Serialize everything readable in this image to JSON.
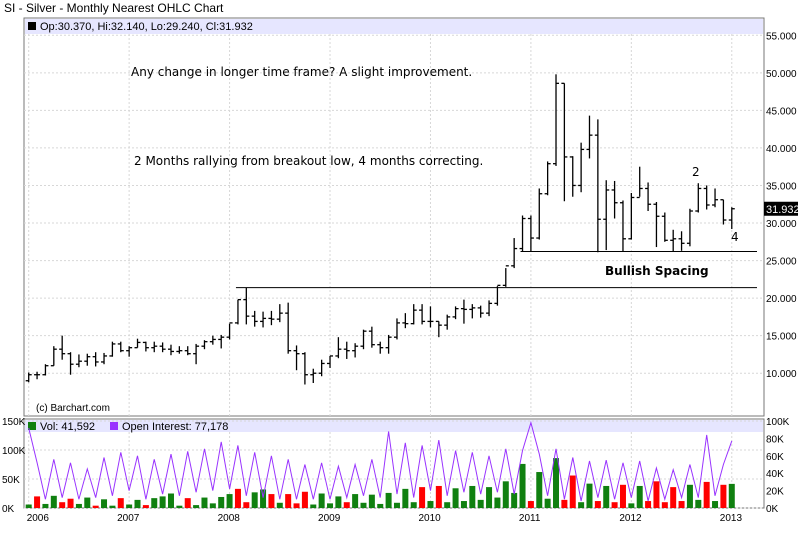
{
  "header": {
    "title": "SI - Silver - Monthly Nearest OHLC Chart",
    "ohlc_readout": "Op:30.370, Hi:32.140, Lo:29.240, Cl:31.932",
    "price_badge": "31.932",
    "watermark": "(c) Barchart.com"
  },
  "annotations": {
    "note_1": "Any change in longer time frame?  A slight improvement.",
    "note_2": "2 Months rallying from breakout low, 4 months correcting.",
    "label_bullish": "Bullish Spacing",
    "wave_2": "2",
    "wave_4": "4"
  },
  "volume_legend": {
    "vol": "Vol: 41,592",
    "oi": "Open Interest: 77,178"
  },
  "colors": {
    "background": "#ffffff",
    "band": "#e6e6ff",
    "grid": "#d7d7d7",
    "bar": "#000000",
    "vol_up": "#108010",
    "vol_down": "#ff0000",
    "oi_line": "#9933ff"
  },
  "chart_data": {
    "type": "ohlc",
    "x_ticks": [
      "2006",
      "2007",
      "2008",
      "2009",
      "2010",
      "2011",
      "2012",
      "2013"
    ],
    "price_ticks": [
      "10.000",
      "15.000",
      "20.000",
      "25.000",
      "30.000",
      "35.000",
      "40.000",
      "45.000",
      "50.000",
      "55.000"
    ],
    "price_range": [
      7.5,
      56.5
    ],
    "volume_left_ticks": [
      "0K",
      "50K",
      "100K",
      "150K"
    ],
    "volume_right_ticks": [
      "0K",
      "20K",
      "40K",
      "60K",
      "80K",
      "100K"
    ],
    "volume_range": [
      0,
      150000
    ],
    "oi_range": [
      0,
      100000
    ],
    "horizontal_lines": [
      {
        "y": 26.2,
        "from": "2010-12",
        "to": "2013-01"
      },
      {
        "y": 21.4,
        "from": "2008-02",
        "to": "2013-01"
      }
    ],
    "series": [
      {
        "name": "Silver monthly OHLC",
        "values": [
          [
            9.0,
            10.1,
            8.8,
            9.8
          ],
          [
            9.8,
            10.2,
            9.2,
            9.8
          ],
          [
            9.8,
            11.2,
            9.7,
            11.0
          ],
          [
            11.0,
            13.6,
            11.0,
            13.2
          ],
          [
            13.2,
            15.0,
            11.8,
            12.6
          ],
          [
            12.6,
            12.8,
            9.8,
            11.2
          ],
          [
            11.2,
            12.5,
            10.8,
            11.6
          ],
          [
            11.6,
            12.6,
            11.0,
            12.2
          ],
          [
            12.2,
            12.8,
            10.9,
            11.5
          ],
          [
            11.5,
            12.7,
            11.2,
            12.3
          ],
          [
            12.3,
            14.2,
            12.2,
            13.9
          ],
          [
            13.9,
            14.2,
            12.8,
            13.0
          ],
          [
            13.0,
            13.6,
            12.2,
            13.4
          ],
          [
            13.4,
            14.6,
            13.4,
            14.1
          ],
          [
            14.1,
            14.2,
            12.9,
            13.4
          ],
          [
            13.4,
            14.2,
            12.8,
            13.6
          ],
          [
            13.6,
            14.1,
            12.8,
            13.2
          ],
          [
            13.2,
            13.8,
            12.4,
            12.9
          ],
          [
            12.9,
            13.6,
            12.6,
            13.0
          ],
          [
            13.0,
            13.6,
            12.4,
            12.6
          ],
          [
            12.6,
            13.9,
            11.2,
            13.6
          ],
          [
            13.6,
            14.4,
            13.2,
            14.2
          ],
          [
            14.2,
            15.0,
            13.8,
            14.5
          ],
          [
            14.5,
            15.1,
            13.3,
            14.8
          ],
          [
            14.8,
            16.6,
            14.5,
            16.7
          ],
          [
            16.7,
            19.8,
            16.5,
            19.8
          ],
          [
            19.8,
            21.4,
            16.5,
            17.6
          ],
          [
            17.6,
            18.3,
            16.2,
            16.9
          ],
          [
            16.9,
            18.2,
            16.1,
            17.3
          ],
          [
            17.3,
            18.3,
            16.4,
            17.2
          ],
          [
            17.2,
            19.2,
            16.8,
            18.0
          ],
          [
            18.0,
            19.4,
            12.6,
            13.0
          ],
          [
            13.0,
            13.7,
            10.4,
            12.6
          ],
          [
            12.6,
            12.8,
            8.5,
            9.8
          ],
          [
            9.8,
            10.6,
            8.7,
            10.0
          ],
          [
            10.0,
            11.8,
            9.6,
            11.3
          ],
          [
            11.3,
            12.3,
            10.7,
            12.3
          ],
          [
            12.3,
            14.8,
            12.0,
            13.2
          ],
          [
            13.2,
            14.2,
            11.9,
            13.0
          ],
          [
            13.0,
            14.0,
            12.1,
            13.6
          ],
          [
            13.6,
            15.8,
            13.2,
            15.6
          ],
          [
            15.6,
            16.2,
            13.4,
            13.8
          ],
          [
            13.8,
            14.2,
            12.6,
            13.4
          ],
          [
            13.4,
            15.1,
            12.6,
            14.8
          ],
          [
            14.8,
            17.3,
            14.5,
            16.7
          ],
          [
            16.7,
            18.0,
            16.0,
            16.6
          ],
          [
            16.6,
            19.2,
            16.5,
            18.4
          ],
          [
            18.4,
            19.2,
            16.5,
            16.9
          ],
          [
            16.9,
            18.9,
            16.1,
            16.9
          ],
          [
            16.9,
            16.9,
            14.8,
            16.4
          ],
          [
            16.4,
            17.8,
            15.8,
            17.5
          ],
          [
            17.5,
            18.9,
            17.2,
            18.6
          ],
          [
            18.6,
            19.8,
            16.6,
            18.5
          ],
          [
            18.5,
            19.2,
            17.3,
            18.7
          ],
          [
            18.7,
            19.0,
            17.4,
            18.0
          ],
          [
            18.0,
            19.7,
            17.6,
            19.3
          ],
          [
            19.3,
            21.6,
            19.0,
            21.7
          ],
          [
            21.7,
            24.0,
            21.5,
            24.3
          ],
          [
            24.3,
            28.0,
            24.0,
            26.6
          ],
          [
            26.6,
            31.0,
            26.2,
            30.6
          ],
          [
            30.6,
            31.0,
            26.2,
            28.0
          ],
          [
            28.0,
            34.6,
            27.8,
            33.9
          ],
          [
            33.9,
            38.2,
            33.7,
            37.9
          ],
          [
            37.9,
            49.8,
            37.6,
            48.6
          ],
          [
            48.6,
            48.6,
            32.9,
            38.8
          ],
          [
            38.8,
            38.9,
            33.5,
            35.0
          ],
          [
            35.0,
            40.7,
            34.1,
            39.8
          ],
          [
            39.8,
            44.3,
            38.6,
            41.7
          ],
          [
            41.7,
            43.8,
            26.1,
            30.5
          ],
          [
            30.5,
            35.7,
            26.4,
            34.4
          ],
          [
            34.4,
            35.6,
            30.6,
            32.7
          ],
          [
            32.7,
            33.0,
            26.2,
            27.9
          ],
          [
            27.9,
            34.0,
            27.8,
            33.4
          ],
          [
            33.4,
            37.5,
            33.5,
            34.6
          ],
          [
            34.6,
            35.4,
            31.6,
            32.5
          ],
          [
            32.5,
            32.8,
            26.8,
            30.9
          ],
          [
            30.9,
            31.4,
            27.5,
            27.7
          ],
          [
            27.7,
            29.1,
            26.2,
            27.9
          ],
          [
            27.9,
            28.9,
            26.3,
            27.3
          ],
          [
            27.3,
            31.9,
            26.9,
            31.6
          ],
          [
            31.6,
            35.3,
            31.4,
            34.6
          ],
          [
            34.6,
            35.0,
            31.8,
            32.4
          ],
          [
            32.4,
            34.6,
            32.1,
            33.1
          ],
          [
            33.1,
            33.1,
            29.8,
            30.4
          ],
          [
            30.4,
            32.1,
            29.2,
            31.9
          ]
        ]
      }
    ],
    "volume": [
      {
        "v": 6000,
        "up": true
      },
      {
        "v": 20000,
        "up": false
      },
      {
        "v": 7000,
        "up": true
      },
      {
        "v": 21000,
        "up": true
      },
      {
        "v": 10000,
        "up": false
      },
      {
        "v": 16000,
        "up": false
      },
      {
        "v": 7000,
        "up": true
      },
      {
        "v": 18000,
        "up": true
      },
      {
        "v": 4000,
        "up": false
      },
      {
        "v": 15000,
        "up": true
      },
      {
        "v": 4000,
        "up": true
      },
      {
        "v": 17000,
        "up": false
      },
      {
        "v": 6000,
        "up": true
      },
      {
        "v": 14000,
        "up": true
      },
      {
        "v": 5000,
        "up": false
      },
      {
        "v": 17000,
        "up": true
      },
      {
        "v": 20000,
        "up": true
      },
      {
        "v": 25000,
        "up": true
      },
      {
        "v": 4000,
        "up": true
      },
      {
        "v": 17000,
        "up": false
      },
      {
        "v": 5000,
        "up": true
      },
      {
        "v": 18000,
        "up": true
      },
      {
        "v": 8000,
        "up": true
      },
      {
        "v": 19000,
        "up": true
      },
      {
        "v": 24000,
        "up": true
      },
      {
        "v": 33000,
        "up": false
      },
      {
        "v": 10000,
        "up": false
      },
      {
        "v": 27000,
        "up": true
      },
      {
        "v": 32000,
        "up": true
      },
      {
        "v": 24000,
        "up": false
      },
      {
        "v": 9000,
        "up": true
      },
      {
        "v": 24000,
        "up": false
      },
      {
        "v": 8000,
        "up": false
      },
      {
        "v": 28000,
        "up": false
      },
      {
        "v": 6000,
        "up": true
      },
      {
        "v": 25000,
        "up": true
      },
      {
        "v": 8000,
        "up": true
      },
      {
        "v": 20000,
        "up": true
      },
      {
        "v": 10000,
        "up": false
      },
      {
        "v": 24000,
        "up": true
      },
      {
        "v": 9000,
        "up": true
      },
      {
        "v": 23000,
        "up": true
      },
      {
        "v": 7000,
        "up": true
      },
      {
        "v": 26000,
        "up": true
      },
      {
        "v": 9000,
        "up": true
      },
      {
        "v": 33000,
        "up": true
      },
      {
        "v": 10000,
        "up": true
      },
      {
        "v": 36000,
        "up": false
      },
      {
        "v": 12000,
        "up": true
      },
      {
        "v": 38000,
        "up": false
      },
      {
        "v": 10000,
        "up": true
      },
      {
        "v": 34000,
        "up": true
      },
      {
        "v": 12000,
        "up": true
      },
      {
        "v": 38000,
        "up": true
      },
      {
        "v": 14000,
        "up": true
      },
      {
        "v": 36000,
        "up": true
      },
      {
        "v": 18000,
        "up": true
      },
      {
        "v": 46000,
        "up": true
      },
      {
        "v": 26000,
        "up": true
      },
      {
        "v": 76000,
        "up": true
      },
      {
        "v": 12000,
        "up": false
      },
      {
        "v": 62000,
        "up": true
      },
      {
        "v": 16000,
        "up": true
      },
      {
        "v": 86000,
        "up": true
      },
      {
        "v": 14000,
        "up": false
      },
      {
        "v": 56000,
        "up": false
      },
      {
        "v": 10000,
        "up": true
      },
      {
        "v": 42000,
        "up": true
      },
      {
        "v": 12000,
        "up": false
      },
      {
        "v": 38000,
        "up": true
      },
      {
        "v": 10000,
        "up": false
      },
      {
        "v": 40000,
        "up": false
      },
      {
        "v": 8000,
        "up": true
      },
      {
        "v": 38000,
        "up": true
      },
      {
        "v": 12000,
        "up": false
      },
      {
        "v": 46000,
        "up": false
      },
      {
        "v": 10000,
        "up": false
      },
      {
        "v": 36000,
        "up": false
      },
      {
        "v": 12000,
        "up": false
      },
      {
        "v": 40000,
        "up": true
      },
      {
        "v": 14000,
        "up": true
      },
      {
        "v": 45000,
        "up": false
      },
      {
        "v": 12000,
        "up": true
      },
      {
        "v": 40000,
        "up": false
      },
      {
        "v": 41592,
        "up": true
      }
    ],
    "open_interest": [
      92000,
      52000,
      10000,
      56000,
      12000,
      52000,
      10000,
      45000,
      12000,
      58000,
      14000,
      64000,
      20000,
      60000,
      10000,
      56000,
      16000,
      62000,
      14000,
      65000,
      18000,
      68000,
      20000,
      76000,
      22000,
      72000,
      14000,
      64000,
      12000,
      60000,
      10000,
      56000,
      10000,
      50000,
      10000,
      52000,
      10000,
      48000,
      12000,
      50000,
      14000,
      56000,
      12000,
      88000,
      16000,
      75000,
      12000,
      72000,
      20000,
      78000,
      14000,
      66000,
      18000,
      64000,
      16000,
      60000,
      18000,
      68000,
      16000,
      66000,
      98000,
      62000,
      14000,
      68000,
      10000,
      58000,
      8000,
      54000,
      12000,
      55000,
      10000,
      52000,
      12000,
      54000,
      8000,
      46000,
      10000,
      44000,
      12000,
      50000,
      12000,
      84000,
      14000,
      50000,
      77178
    ]
  }
}
